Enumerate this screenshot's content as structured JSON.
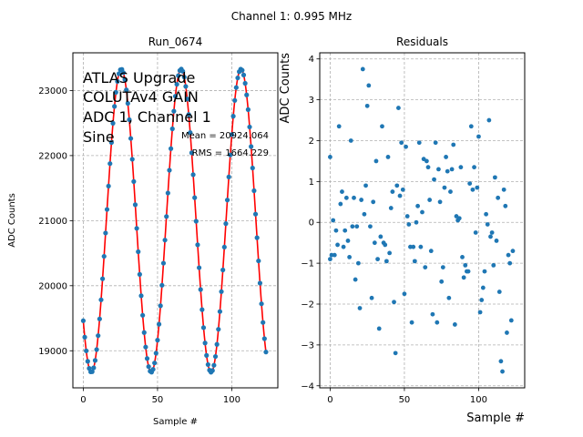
{
  "chart_data": {
    "suptitle": "Channel 1: 0.995 MHz",
    "panels": [
      {
        "id": "run",
        "type": "scatter+line",
        "title": "Run_0674",
        "xlabel": "Sample #",
        "ylabel": "ADC Counts",
        "xlim": [
          -7,
          131
        ],
        "ylim": [
          18430,
          23580
        ],
        "xticks": [
          0,
          50,
          100
        ],
        "yticks": [
          19000,
          20000,
          21000,
          22000,
          23000
        ],
        "grid": true,
        "annotation_lines": [
          "ATLAS Upgrade",
          "COLUTAv4 GAIN",
          "ADC 1, Channel 1",
          "Sine"
        ],
        "stats": {
          "mean_label": "Mean = 20924.064",
          "rms_label": "RMS = 1664.229"
        },
        "fit": {
          "model": "sine",
          "offset": 21000,
          "amplitude": 2330,
          "period": 40.3,
          "peak_sample": 25.6,
          "color": "#ff0000"
        },
        "samples": {
          "n": 124,
          "color": "#1f77b4"
        }
      },
      {
        "id": "residuals",
        "type": "scatter",
        "title": "Residuals",
        "xlabel": "Sample #",
        "ylabel": "ADC Counts",
        "xlim": [
          -7,
          131
        ],
        "ylim": [
          -4.05,
          4.15
        ],
        "xticks": [
          0,
          50,
          100
        ],
        "yticks": [
          -4,
          -3,
          -2,
          -1,
          0,
          1,
          2,
          3,
          4
        ],
        "grid": true,
        "color": "#1f77b4",
        "points": [
          [
            0,
            1.6
          ],
          [
            0,
            -0.9
          ],
          [
            1,
            -0.8
          ],
          [
            2,
            0.05
          ],
          [
            3,
            -0.8
          ],
          [
            4,
            -0.2
          ],
          [
            5,
            -0.55
          ],
          [
            6,
            2.35
          ],
          [
            7,
            0.45
          ],
          [
            8,
            0.75
          ],
          [
            9,
            -0.6
          ],
          [
            10,
            -0.2
          ],
          [
            11,
            0.6
          ],
          [
            12,
            -0.45
          ],
          [
            13,
            -0.85
          ],
          [
            14,
            2.0
          ],
          [
            15,
            -0.1
          ],
          [
            16,
            0.6
          ],
          [
            17,
            -1.4
          ],
          [
            18,
            -0.1
          ],
          [
            19,
            -1.0
          ],
          [
            20,
            -2.1
          ],
          [
            21,
            0.55
          ],
          [
            22,
            3.75
          ],
          [
            23,
            0.2
          ],
          [
            24,
            0.9
          ],
          [
            25,
            2.85
          ],
          [
            26,
            3.35
          ],
          [
            27,
            -0.1
          ],
          [
            28,
            -1.85
          ],
          [
            29,
            0.5
          ],
          [
            30,
            -0.5
          ],
          [
            31,
            1.5
          ],
          [
            32,
            -0.9
          ],
          [
            33,
            -2.6
          ],
          [
            34,
            -0.35
          ],
          [
            35,
            2.35
          ],
          [
            36,
            -0.5
          ],
          [
            37,
            -0.55
          ],
          [
            38,
            -0.95
          ],
          [
            39,
            1.6
          ],
          [
            40,
            -0.75
          ],
          [
            41,
            0.35
          ],
          [
            42,
            0.75
          ],
          [
            43,
            -1.95
          ],
          [
            44,
            -3.2
          ],
          [
            45,
            0.9
          ],
          [
            46,
            2.8
          ],
          [
            47,
            0.65
          ],
          [
            48,
            1.95
          ],
          [
            49,
            0.8
          ],
          [
            50,
            -1.75
          ],
          [
            51,
            1.85
          ],
          [
            52,
            0.15
          ],
          [
            53,
            -0.05
          ],
          [
            54,
            -0.6
          ],
          [
            55,
            -2.45
          ],
          [
            56,
            -0.6
          ],
          [
            57,
            -0.95
          ],
          [
            58,
            0.0
          ],
          [
            59,
            0.4
          ],
          [
            60,
            1.95
          ],
          [
            61,
            -0.6
          ],
          [
            62,
            0.25
          ],
          [
            63,
            1.55
          ],
          [
            64,
            -1.1
          ],
          [
            65,
            1.5
          ],
          [
            66,
            1.35
          ],
          [
            67,
            0.55
          ],
          [
            68,
            -0.7
          ],
          [
            69,
            -2.25
          ],
          [
            70,
            1.05
          ],
          [
            71,
            1.95
          ],
          [
            72,
            -2.45
          ],
          [
            73,
            1.3
          ],
          [
            74,
            0.5
          ],
          [
            75,
            -1.45
          ],
          [
            76,
            -1.1
          ],
          [
            77,
            0.85
          ],
          [
            78,
            1.6
          ],
          [
            79,
            1.25
          ],
          [
            80,
            -1.85
          ],
          [
            81,
            0.75
          ],
          [
            82,
            1.3
          ],
          [
            83,
            1.9
          ],
          [
            84,
            -2.5
          ],
          [
            85,
            0.15
          ],
          [
            86,
            0.05
          ],
          [
            87,
            0.1
          ],
          [
            88,
            1.35
          ],
          [
            89,
            -0.85
          ],
          [
            90,
            -1.35
          ],
          [
            91,
            -1.05
          ],
          [
            92,
            -1.2
          ],
          [
            93,
            -1.2
          ],
          [
            94,
            0.95
          ],
          [
            95,
            2.35
          ],
          [
            96,
            0.8
          ],
          [
            97,
            1.35
          ],
          [
            98,
            -0.25
          ],
          [
            99,
            0.85
          ],
          [
            100,
            2.1
          ],
          [
            101,
            -2.2
          ],
          [
            102,
            -1.9
          ],
          [
            103,
            -1.6
          ],
          [
            104,
            -1.2
          ],
          [
            105,
            0.2
          ],
          [
            106,
            -0.05
          ],
          [
            107,
            2.5
          ],
          [
            108,
            -0.35
          ],
          [
            109,
            -0.25
          ],
          [
            110,
            -1.05
          ],
          [
            111,
            1.1
          ],
          [
            112,
            -0.45
          ],
          [
            113,
            0.6
          ],
          [
            114,
            -1.7
          ],
          [
            115,
            -3.4
          ],
          [
            116,
            -3.65
          ],
          [
            117,
            0.8
          ],
          [
            118,
            0.4
          ],
          [
            119,
            -2.7
          ],
          [
            120,
            -0.8
          ],
          [
            121,
            -1.0
          ],
          [
            122,
            -2.4
          ],
          [
            123,
            -0.7
          ]
        ]
      }
    ]
  }
}
